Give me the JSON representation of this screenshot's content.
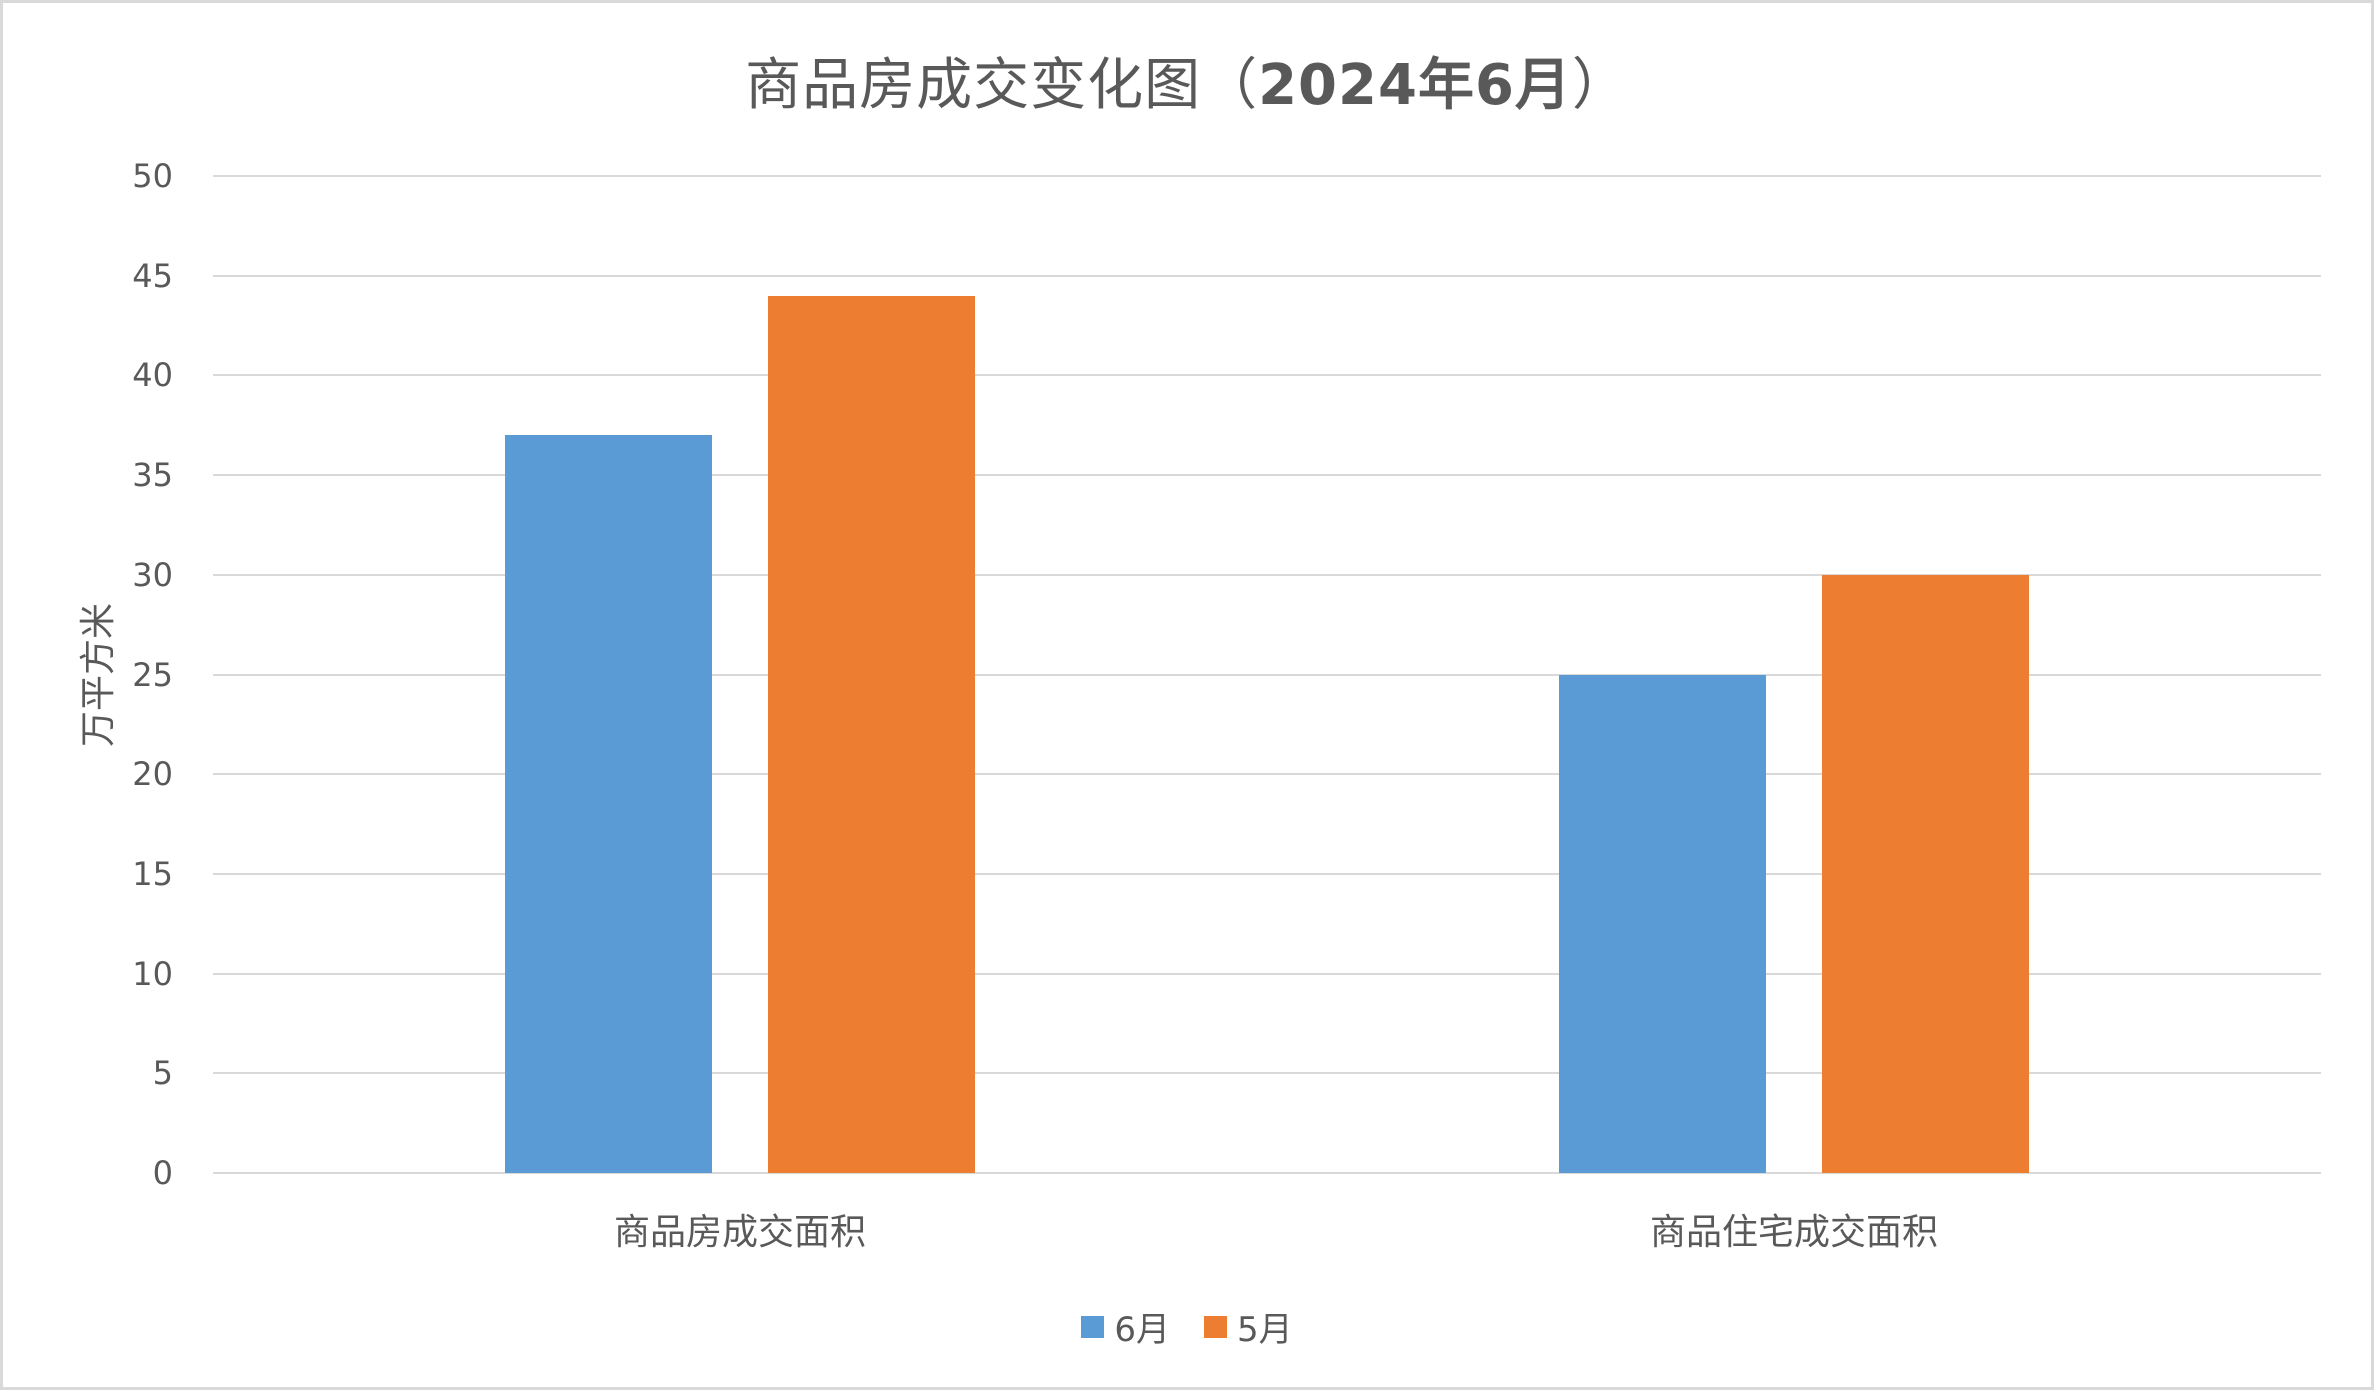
{
  "title": {
    "prefix": "商品房成交变化图（",
    "bold_part": "2024年6月",
    "suffix": "）",
    "full": "商品房成交变化图（2024年6月）"
  },
  "colors": {
    "series_june": "#5b9bd5",
    "series_may": "#ed7d31",
    "gridline": "#d9d9d9",
    "text": "#595959",
    "border": "#d9d9d9"
  },
  "axis": {
    "ylabel": "万平方米",
    "yticks": [
      "50",
      "45",
      "40",
      "35",
      "30",
      "25",
      "20",
      "15",
      "10",
      "5",
      "0"
    ]
  },
  "legend": {
    "items": [
      {
        "label": "6月",
        "color": "#5b9bd5"
      },
      {
        "label": "5月",
        "color": "#ed7d31"
      }
    ]
  },
  "chart_data": {
    "type": "bar",
    "title": "商品房成交变化图（2024年6月）",
    "xlabel": "",
    "ylabel": "万平方米",
    "categories": [
      "商品房成交面积",
      "商品住宅成交面积"
    ],
    "series": [
      {
        "name": "6月",
        "color": "#5b9bd5",
        "values": [
          37,
          25
        ]
      },
      {
        "name": "5月",
        "color": "#ed7d31",
        "values": [
          44,
          30
        ]
      }
    ],
    "ylim": [
      0,
      50
    ],
    "ytick_step": 5,
    "grid": true,
    "legend_position": "bottom"
  }
}
